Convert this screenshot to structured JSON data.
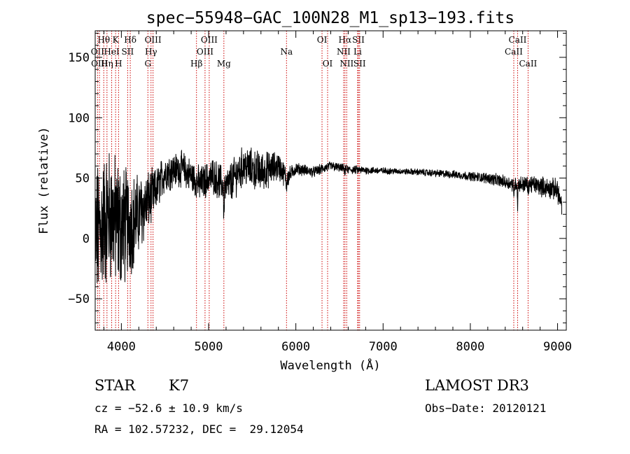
{
  "chart_data": {
    "type": "line",
    "title": "spec−55948−GAC_100N28_M1_sp13−193.fits",
    "xlabel": "Wavelength (Å)",
    "ylabel": "Flux (relative)",
    "xlim": [
      3700,
      9100
    ],
    "ylim": [
      -76,
      172
    ],
    "x_ticks": [
      4000,
      5000,
      6000,
      7000,
      8000,
      9000
    ],
    "y_ticks": [
      -50,
      0,
      50,
      100,
      150
    ],
    "y_tick_labels": [
      "−50",
      "0",
      "50",
      "100",
      "150"
    ],
    "x_tick_labels": [
      "4000",
      "5000",
      "6000",
      "7000",
      "8000",
      "9000"
    ],
    "continuum_nodes": {
      "x": [
        3700,
        3850,
        4000,
        4150,
        4300,
        4400,
        4500,
        4700,
        4900,
        5050,
        5200,
        5400,
        5600,
        5800,
        5900,
        6000,
        6200,
        6400,
        6600,
        7000,
        7400,
        7800,
        8200,
        8500,
        8700,
        9000,
        9050
      ],
      "y": [
        0,
        20,
        10,
        15,
        30,
        40,
        55,
        58,
        45,
        52,
        42,
        60,
        55,
        60,
        50,
        58,
        55,
        60,
        57,
        56,
        55,
        53,
        50,
        45,
        45,
        40,
        25
      ]
    },
    "noise_nodes": {
      "x": [
        3700,
        4000,
        4200,
        4400,
        4600,
        5000,
        5300,
        5600,
        5800,
        6000,
        6600,
        7200,
        8000,
        8500,
        9050
      ],
      "y": [
        50,
        45,
        28,
        15,
        12,
        12,
        14,
        14,
        10,
        4,
        3,
        2,
        3,
        5,
        8
      ]
    },
    "absorption_dips": [
      {
        "x": 5175,
        "depth": 30
      },
      {
        "x": 5893,
        "depth": 10
      },
      {
        "x": 6563,
        "depth": 5
      },
      {
        "x": 8498,
        "depth": 12
      },
      {
        "x": 8542,
        "depth": 18
      },
      {
        "x": 8662,
        "depth": 10
      }
    ],
    "spectral_lines": [
      {
        "label": "Hθ",
        "x": 3798,
        "row": 1
      },
      {
        "label": "K",
        "x": 3934,
        "row": 1
      },
      {
        "label": "Hδ",
        "x": 4102,
        "row": 1
      },
      {
        "label": "OIII",
        "x": 4363,
        "row": 1
      },
      {
        "label": "OIII",
        "x": 5007,
        "row": 1
      },
      {
        "label": "OI",
        "x": 6300,
        "row": 1
      },
      {
        "label": "Hα",
        "x": 6563,
        "row": 1
      },
      {
        "label": "SII",
        "x": 6717,
        "row": 1
      },
      {
        "label": "CaII",
        "x": 8542,
        "row": 1
      },
      {
        "label": "OII",
        "x": 3727,
        "row": 2
      },
      {
        "label": "HeI",
        "x": 3889,
        "row": 2
      },
      {
        "label": "SII",
        "x": 4072,
        "row": 2
      },
      {
        "label": "Hγ",
        "x": 4340,
        "row": 2
      },
      {
        "label": "OIII",
        "x": 4959,
        "row": 2
      },
      {
        "label": "Na",
        "x": 5893,
        "row": 2
      },
      {
        "label": "NII",
        "x": 6548,
        "row": 2
      },
      {
        "label": "Li",
        "x": 6708,
        "row": 2
      },
      {
        "label": "CaII",
        "x": 8498,
        "row": 2
      },
      {
        "label": "OIII",
        "x": 3749,
        "row": 3
      },
      {
        "label": "Hη",
        "x": 3835,
        "row": 3
      },
      {
        "label": "H",
        "x": 3968,
        "row": 3
      },
      {
        "label": "G",
        "x": 4304,
        "row": 3
      },
      {
        "label": "Hβ",
        "x": 4861,
        "row": 3
      },
      {
        "label": "Mg",
        "x": 5175,
        "row": 3
      },
      {
        "label": "OI",
        "x": 6364,
        "row": 3
      },
      {
        "label": "NII",
        "x": 6583,
        "row": 3
      },
      {
        "label": "SII",
        "x": 6731,
        "row": 3
      },
      {
        "label": "CaII",
        "x": 8662,
        "row": 3
      }
    ]
  },
  "info": {
    "object_class": "STAR",
    "subclass": "K7",
    "survey": "LAMOST DR3",
    "velocity": "cz = −52.6 ± 10.9 km/s",
    "obs_date": "Obs−Date: 20120121",
    "coords": "RA = 102.57232, DEC =  29.12054"
  },
  "colors": {
    "spectrum": "#000000",
    "line_markers": "#cc0000",
    "axes": "#000000",
    "background": "#ffffff"
  }
}
